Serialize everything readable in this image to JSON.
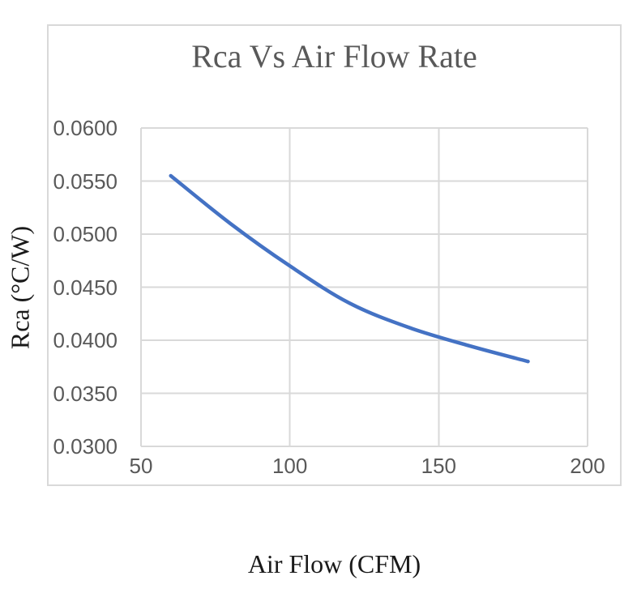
{
  "chart_data": {
    "type": "line",
    "title": "Rca Vs Air Flow Rate",
    "xlabel": "Air Flow (CFM)",
    "ylabel": "Rca (°C/W)",
    "x": [
      60,
      80,
      100,
      120,
      140,
      160,
      180
    ],
    "y": [
      0.0555,
      0.051,
      0.047,
      0.0435,
      0.0412,
      0.0395,
      0.038
    ],
    "xlim": [
      50,
      200
    ],
    "ylim": [
      0.03,
      0.06
    ],
    "x_ticks": [
      50,
      100,
      150,
      200
    ],
    "x_tick_labels": [
      "50",
      "100",
      "150",
      "200"
    ],
    "y_ticks": [
      0.03,
      0.035,
      0.04,
      0.045,
      0.05,
      0.055,
      0.06
    ],
    "y_tick_labels": [
      "0.0300",
      "0.0350",
      "0.0400",
      "0.0450",
      "0.0500",
      "0.0550",
      "0.0600"
    ],
    "grid": true,
    "legend": false,
    "smooth": true,
    "colors": {
      "line": "#4472C4",
      "grid": "#D9D9D9",
      "border": "#D9D9D9",
      "tick_text": "#595959",
      "title_text": "#595959",
      "axis_title_text": "#1A1A1A"
    }
  }
}
